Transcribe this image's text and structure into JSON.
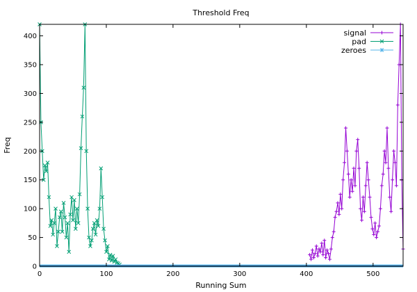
{
  "chart_data": {
    "type": "line",
    "title": "Threshold Freq",
    "xlabel": "Running Sum",
    "ylabel": "Freq",
    "xlim": [
      0,
      545
    ],
    "ylim": [
      0,
      420
    ],
    "xticks": [
      0,
      100,
      200,
      300,
      400,
      500
    ],
    "yticks": [
      0,
      50,
      100,
      150,
      200,
      250,
      300,
      350,
      400
    ],
    "grid": false,
    "legend_position": "top-right",
    "series": [
      {
        "name": "signal",
        "color": "#9400d3",
        "marker": "plus",
        "points": [
          [
            405,
            20
          ],
          [
            407,
            12
          ],
          [
            409,
            28
          ],
          [
            411,
            15
          ],
          [
            413,
            22
          ],
          [
            415,
            35
          ],
          [
            417,
            18
          ],
          [
            419,
            30
          ],
          [
            421,
            25
          ],
          [
            423,
            40
          ],
          [
            425,
            20
          ],
          [
            427,
            45
          ],
          [
            429,
            15
          ],
          [
            431,
            28
          ],
          [
            433,
            22
          ],
          [
            435,
            12
          ],
          [
            437,
            30
          ],
          [
            439,
            50
          ],
          [
            441,
            60
          ],
          [
            443,
            85
          ],
          [
            445,
            95
          ],
          [
            447,
            110
          ],
          [
            449,
            90
          ],
          [
            451,
            125
          ],
          [
            453,
            100
          ],
          [
            455,
            150
          ],
          [
            457,
            180
          ],
          [
            459,
            240
          ],
          [
            461,
            200
          ],
          [
            463,
            160
          ],
          [
            465,
            120
          ],
          [
            467,
            150
          ],
          [
            469,
            130
          ],
          [
            471,
            170
          ],
          [
            473,
            140
          ],
          [
            475,
            200
          ],
          [
            477,
            220
          ],
          [
            479,
            170
          ],
          [
            481,
            100
          ],
          [
            483,
            80
          ],
          [
            485,
            120
          ],
          [
            487,
            95
          ],
          [
            489,
            140
          ],
          [
            491,
            180
          ],
          [
            493,
            150
          ],
          [
            495,
            120
          ],
          [
            497,
            85
          ],
          [
            499,
            65
          ],
          [
            501,
            55
          ],
          [
            503,
            75
          ],
          [
            505,
            50
          ],
          [
            507,
            60
          ],
          [
            509,
            70
          ],
          [
            511,
            100
          ],
          [
            513,
            140
          ],
          [
            515,
            160
          ],
          [
            517,
            200
          ],
          [
            519,
            180
          ],
          [
            521,
            240
          ],
          [
            523,
            170
          ],
          [
            525,
            120
          ],
          [
            527,
            95
          ],
          [
            529,
            150
          ],
          [
            531,
            200
          ],
          [
            533,
            180
          ],
          [
            535,
            140
          ],
          [
            537,
            280
          ],
          [
            539,
            350
          ],
          [
            541,
            420
          ],
          [
            543,
            150
          ],
          [
            545,
            30
          ]
        ]
      },
      {
        "name": "pad",
        "color": "#009e73",
        "marker": "x",
        "points": [
          [
            0,
            420
          ],
          [
            2,
            250
          ],
          [
            4,
            200
          ],
          [
            6,
            150
          ],
          [
            8,
            175
          ],
          [
            10,
            165
          ],
          [
            12,
            180
          ],
          [
            14,
            120
          ],
          [
            16,
            70
          ],
          [
            18,
            80
          ],
          [
            20,
            55
          ],
          [
            22,
            75
          ],
          [
            24,
            100
          ],
          [
            26,
            35
          ],
          [
            28,
            60
          ],
          [
            30,
            85
          ],
          [
            32,
            95
          ],
          [
            34,
            60
          ],
          [
            36,
            110
          ],
          [
            38,
            85
          ],
          [
            40,
            50
          ],
          [
            42,
            75
          ],
          [
            44,
            25
          ],
          [
            46,
            90
          ],
          [
            48,
            120
          ],
          [
            50,
            80
          ],
          [
            52,
            115
          ],
          [
            54,
            65
          ],
          [
            56,
            100
          ],
          [
            58,
            75
          ],
          [
            60,
            125
          ],
          [
            62,
            205
          ],
          [
            64,
            260
          ],
          [
            66,
            310
          ],
          [
            68,
            420
          ],
          [
            70,
            200
          ],
          [
            72,
            100
          ],
          [
            74,
            50
          ],
          [
            76,
            35
          ],
          [
            78,
            45
          ],
          [
            80,
            65
          ],
          [
            82,
            75
          ],
          [
            84,
            55
          ],
          [
            86,
            80
          ],
          [
            88,
            70
          ],
          [
            90,
            100
          ],
          [
            92,
            170
          ],
          [
            94,
            120
          ],
          [
            96,
            65
          ],
          [
            98,
            45
          ],
          [
            100,
            25
          ],
          [
            102,
            35
          ],
          [
            104,
            12
          ],
          [
            106,
            20
          ],
          [
            108,
            10
          ],
          [
            110,
            18
          ],
          [
            112,
            8
          ],
          [
            114,
            12
          ],
          [
            116,
            6
          ],
          [
            118,
            5
          ],
          [
            120,
            3
          ]
        ]
      },
      {
        "name": "zeroes",
        "color": "#56b4e9",
        "marker": "star",
        "points": [
          [
            0,
            0
          ],
          [
            545,
            0
          ]
        ]
      }
    ]
  }
}
